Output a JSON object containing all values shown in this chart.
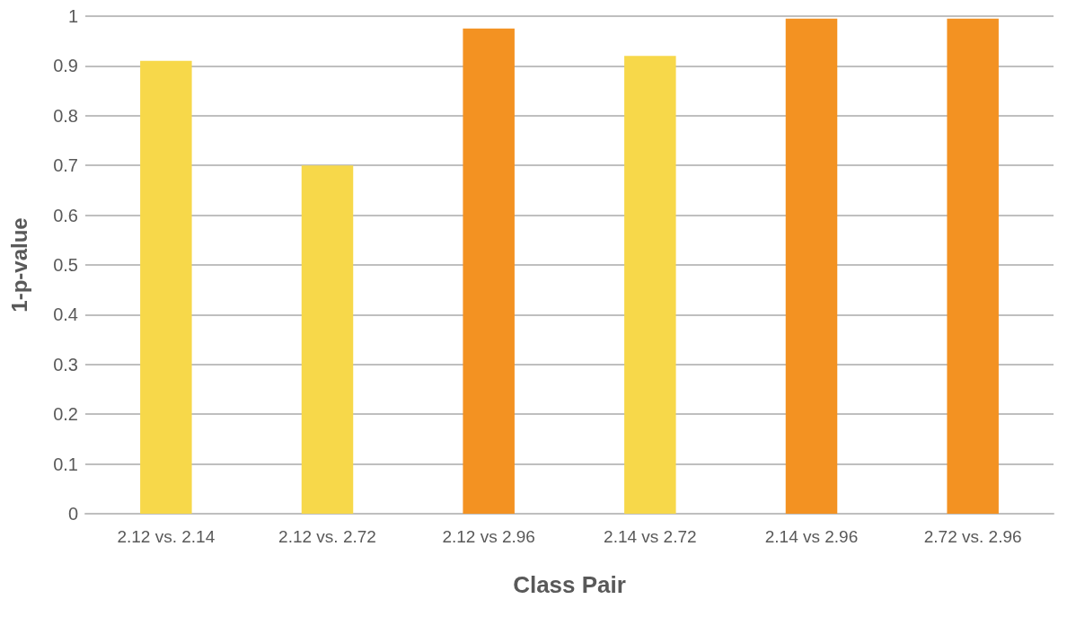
{
  "chart_data": {
    "type": "bar",
    "xlabel": "Class Pair",
    "ylabel": "1-p-value",
    "categories": [
      "2.12 vs. 2.14",
      "2.12 vs. 2.72",
      "2.12 vs 2.96",
      "2.14 vs 2.72",
      "2.14 vs 2.96",
      "2.72 vs. 2.96"
    ],
    "values": [
      0.91,
      0.7,
      0.975,
      0.92,
      0.995,
      0.995
    ],
    "colors": [
      "#f7d84a",
      "#f7d84a",
      "#f39222",
      "#f7d84a",
      "#f39222",
      "#f39222"
    ],
    "ylim": [
      0,
      1
    ],
    "yticks": [
      0,
      0.1,
      0.2,
      0.3,
      0.4,
      0.5,
      0.6,
      0.7,
      0.8,
      0.9,
      1
    ],
    "grid": "y"
  }
}
